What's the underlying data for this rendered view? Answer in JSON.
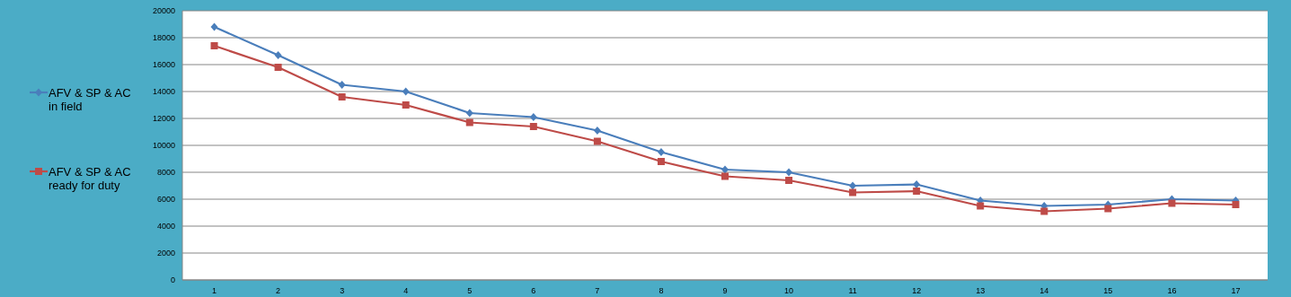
{
  "chart_data": {
    "type": "line",
    "categories": [
      "1",
      "2",
      "3",
      "4",
      "5",
      "6",
      "7",
      "8",
      "9",
      "10",
      "11",
      "12",
      "13",
      "14",
      "15",
      "16",
      "17"
    ],
    "series": [
      {
        "name": "AFV & SP & AC in field",
        "color": "#4a7ebb",
        "marker": "diamond",
        "values": [
          18800,
          16700,
          14500,
          14000,
          12400,
          12100,
          11100,
          9500,
          8200,
          8000,
          7000,
          7100,
          5900,
          5500,
          5600,
          6000,
          5900
        ]
      },
      {
        "name": "AFV & SP & AC ready for duty",
        "color": "#be4b48",
        "marker": "square",
        "values": [
          17400,
          15800,
          13600,
          13000,
          11700,
          11400,
          10300,
          8800,
          7700,
          7400,
          6500,
          6600,
          5500,
          5100,
          5300,
          5700,
          5600
        ]
      }
    ],
    "ylim": [
      0,
      20000
    ],
    "yticks": [
      0,
      2000,
      4000,
      6000,
      8000,
      10000,
      12000,
      14000,
      16000,
      18000,
      20000
    ],
    "grid": "y",
    "legend": "left"
  }
}
